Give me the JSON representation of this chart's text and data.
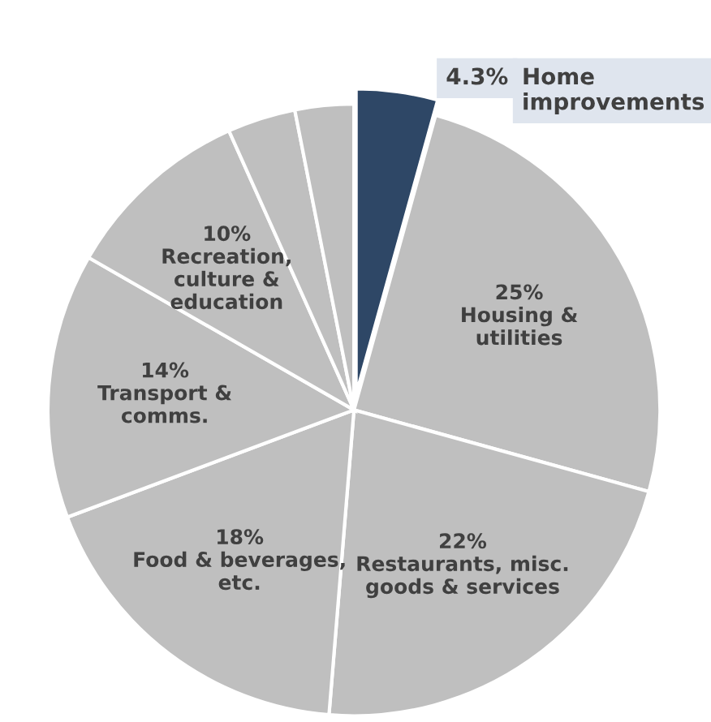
{
  "chart_data": {
    "type": "pie",
    "categories": [
      "Home\nimprovements",
      "Housing &\nutilities",
      "Restaurants, misc.\ngoods & services",
      "Food & beverages,\netc.",
      "Transport &\ncomms.",
      "Recreation,\nculture &\neducation",
      null,
      null
    ],
    "values": [
      4.3,
      25,
      22,
      18,
      14,
      10,
      3.6,
      3.1
    ],
    "value_labels": [
      "4.3%",
      "25%",
      "22%",
      "18%",
      "14%",
      "10%",
      null,
      null
    ],
    "colors": [
      "#2e4766",
      "#bfbfbf",
      "#bfbfbf",
      "#bfbfbf",
      "#bfbfbf",
      "#bfbfbf",
      "#bfbfbf",
      "#bfbfbf"
    ]
  }
}
